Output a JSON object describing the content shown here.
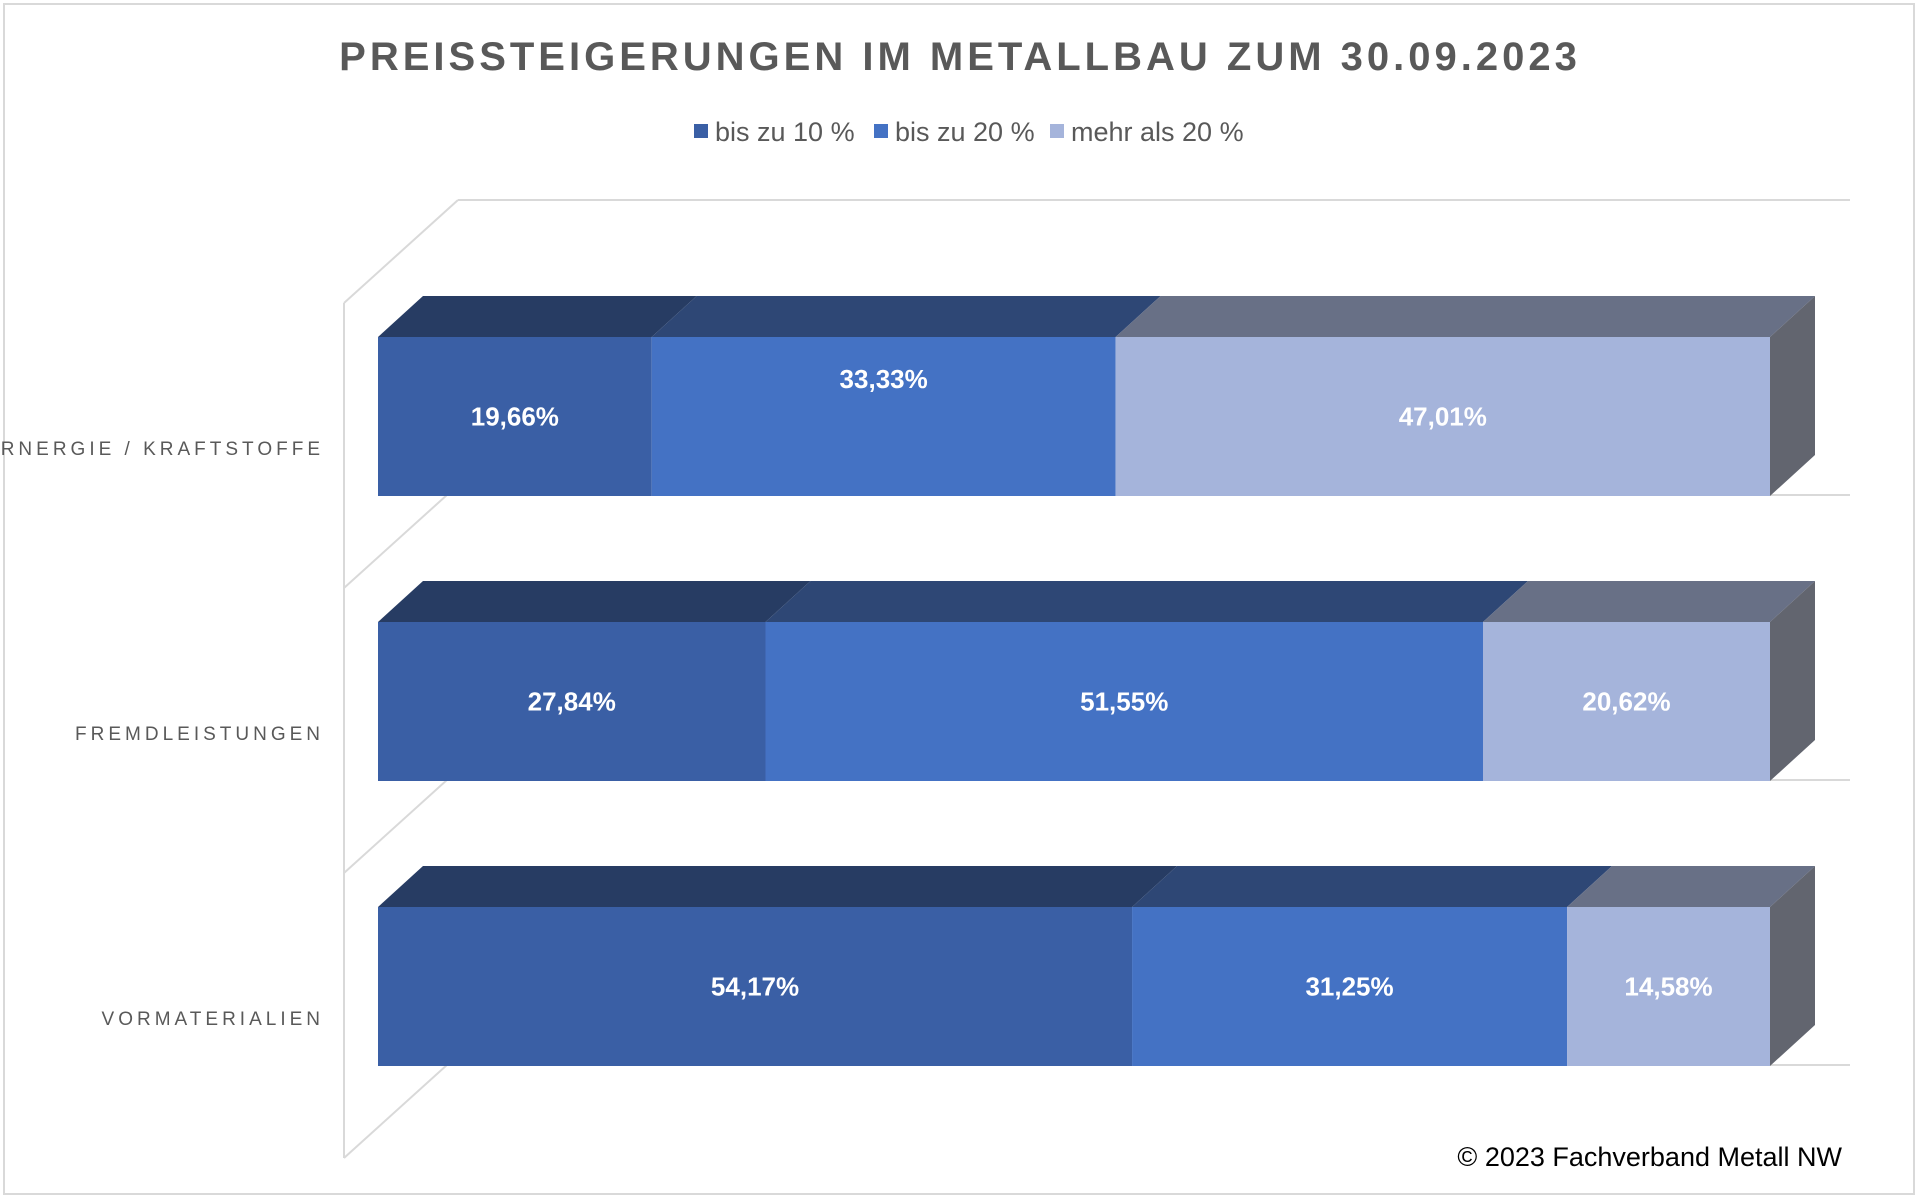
{
  "chart_data": {
    "type": "bar",
    "orientation": "horizontal",
    "stacked": "100%",
    "three_d": true,
    "title": "PREISSTEIGERUNGEN IM METALLBAU ZUM 30.09.2023",
    "categories": [
      "ERNERGIE / KRAFTSTOFFE",
      "FREMDLEISTUNGEN",
      "VORMATERIALIEN"
    ],
    "series": [
      {
        "name": "bis zu 10 %",
        "values": [
          19.66,
          27.84,
          54.17
        ],
        "labels": [
          "19,66%",
          "27,84%",
          "54,17%"
        ],
        "color": "#3a5fa5"
      },
      {
        "name": "bis zu 20 %",
        "values": [
          33.33,
          51.55,
          31.25
        ],
        "labels": [
          "33,33%",
          "51,55%",
          "31,25%"
        ],
        "color": "#4472c4"
      },
      {
        "name": "mehr als 20 %",
        "values": [
          47.01,
          20.62,
          14.58
        ],
        "labels": [
          "47,01%",
          "20,62%",
          "14,58%"
        ],
        "color": "#a5b4db"
      }
    ],
    "legend_position": "top",
    "grid": true,
    "copyright": "© 2023 Fachverband Metall NW"
  }
}
